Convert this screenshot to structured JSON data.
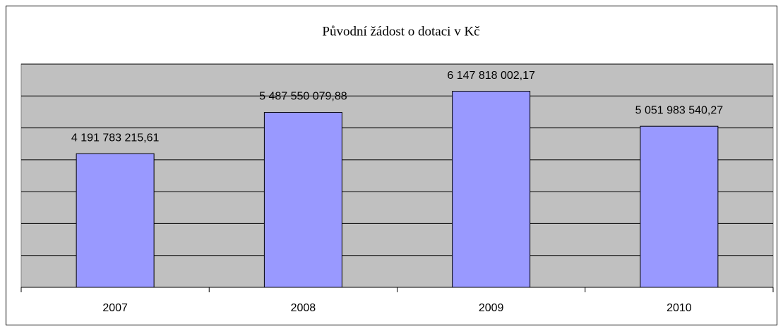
{
  "chart_data": {
    "type": "bar",
    "title": "Původní žádost o dotaci v Kč",
    "categories": [
      "2007",
      "2008",
      "2009",
      "2010"
    ],
    "values": [
      4191783215.61,
      5487550079.88,
      6147818002.17,
      5051983540.27
    ],
    "value_labels": [
      "4 191 783 215,61",
      "5 487 550 079,88",
      "6 147 818 002,17",
      "5 051 983 540,27"
    ],
    "color": "#9999ff",
    "ylim": [
      0,
      7000000000
    ],
    "yticks": [
      0,
      1000000000,
      2000000000,
      3000000000,
      4000000000,
      5000000000,
      6000000000,
      7000000000
    ],
    "grid": true
  }
}
